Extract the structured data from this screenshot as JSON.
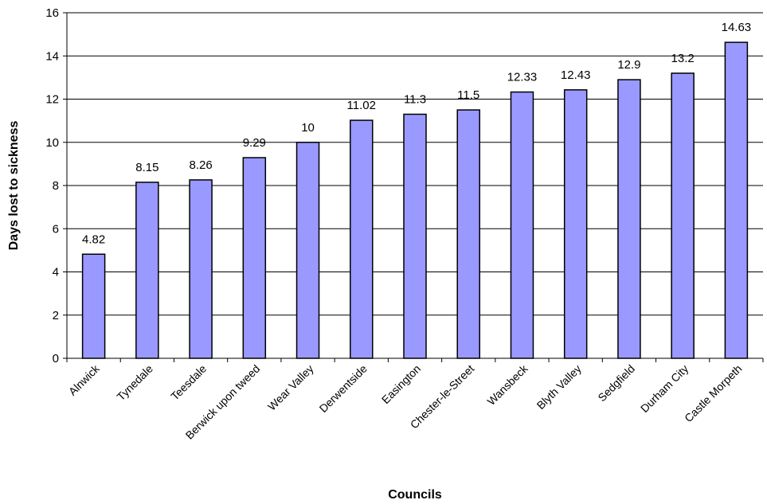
{
  "chart_data": {
    "type": "bar",
    "title": "",
    "xlabel": "Councils",
    "ylabel": "Days lost to sickness",
    "ylim": [
      0,
      16
    ],
    "yticks": [
      "0",
      "2",
      "4",
      "6",
      "8",
      "10",
      "12",
      "14",
      "16"
    ],
    "grid": true,
    "legend": "none",
    "bar_color": "#9999ff",
    "categories": [
      "Alnwick",
      "Tynedale",
      "Teesdale",
      "Berwick upon tweed",
      "Wear Valley",
      "Derwentside",
      "Easington",
      "Chester-le-Street",
      "Wansbeck",
      "Blyth Valley",
      "Sedgfield",
      "Durham City",
      "Castle Morpeth"
    ],
    "values": [
      4.82,
      8.15,
      8.26,
      9.29,
      10,
      11.02,
      11.3,
      11.5,
      12.33,
      12.43,
      12.9,
      13.2,
      14.63
    ],
    "data_labels": [
      "4.82",
      "8.15",
      "8.26",
      "9.29",
      "10",
      "11.02",
      "11.3",
      "11.5",
      "12.33",
      "12.43",
      "12.9",
      "13.2",
      "14.63"
    ]
  }
}
